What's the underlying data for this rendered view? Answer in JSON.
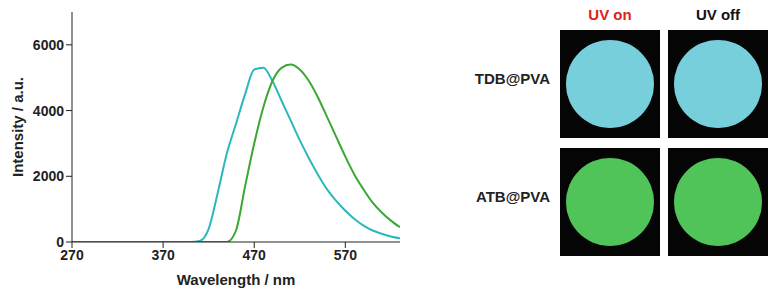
{
  "chart_data": {
    "type": "line",
    "x_label": "Wavelength / nm",
    "y_label": "Intensity / a.u.",
    "xlim": [
      270,
      630
    ],
    "xticks": [
      270,
      370,
      470,
      570
    ],
    "ylim": [
      0,
      7000
    ],
    "yticks": [
      0,
      2000,
      4000,
      6000
    ],
    "grid": false,
    "x": [
      270,
      280,
      290,
      300,
      310,
      320,
      330,
      340,
      350,
      360,
      370,
      380,
      390,
      400,
      410,
      420,
      430,
      440,
      450,
      460,
      470,
      480,
      490,
      500,
      510,
      520,
      530,
      540,
      550,
      560,
      570,
      580,
      590,
      600,
      610,
      620,
      630
    ],
    "series": [
      {
        "name": "TDB@PVA",
        "color": "#2bb8bd",
        "values": [
          0,
          0,
          0,
          0,
          0,
          0,
          0,
          0,
          0,
          0,
          0,
          0,
          0,
          0,
          30,
          400,
          1500,
          2700,
          3600,
          4500,
          5250,
          5300,
          4900,
          4300,
          3700,
          3100,
          2550,
          2050,
          1600,
          1250,
          950,
          700,
          500,
          350,
          250,
          170,
          110
        ]
      },
      {
        "name": "ATB@PVA",
        "color": "#3aa832",
        "values": [
          0,
          0,
          0,
          0,
          0,
          0,
          0,
          0,
          0,
          0,
          0,
          0,
          0,
          0,
          0,
          0,
          0,
          0,
          350,
          1700,
          3000,
          4100,
          4900,
          5300,
          5400,
          5250,
          4900,
          4400,
          3800,
          3200,
          2600,
          2050,
          1600,
          1200,
          900,
          650,
          450
        ]
      }
    ]
  },
  "photo_panel": {
    "columns": [
      "UV on",
      "UV off"
    ],
    "rows": [
      "TDB@PVA",
      "ATB@PVA"
    ]
  }
}
